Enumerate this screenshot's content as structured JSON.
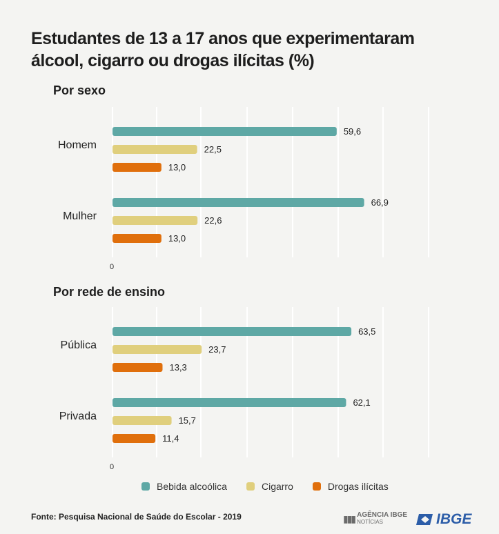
{
  "title": "Estudantes de 13 a 17 anos que experimentaram álcool, cigarro ou drogas ilícitas (%)",
  "colors": {
    "bebida": "#5ea8a5",
    "cigarro": "#e0cf7d",
    "drogas": "#e06f0c",
    "grid": "#ffffff",
    "text": "#222222"
  },
  "legend": [
    {
      "label": "Bebida alcoólica",
      "color": "#5ea8a5"
    },
    {
      "label": "Cigarro",
      "color": "#e0cf7d"
    },
    {
      "label": "Drogas ilícitas",
      "color": "#e06f0c"
    }
  ],
  "chart_data": [
    {
      "type": "bar",
      "orientation": "horizontal",
      "title": "Por sexo",
      "categories": [
        "Homem",
        "Mulher"
      ],
      "series": [
        {
          "name": "Bebida alcoólica",
          "values": [
            59.6,
            66.9
          ],
          "labels": [
            "59,6",
            "66,9"
          ]
        },
        {
          "name": "Cigarro",
          "values": [
            22.5,
            22.6
          ],
          "labels": [
            "22,5",
            "22,6"
          ]
        },
        {
          "name": "Drogas ilícitas",
          "values": [
            13.0,
            13.0
          ],
          "labels": [
            "13,0",
            "13,0"
          ]
        }
      ],
      "xlim": [
        0,
        80
      ],
      "x_tick_label": "0",
      "grid": true
    },
    {
      "type": "bar",
      "orientation": "horizontal",
      "title": "Por rede de ensino",
      "categories": [
        "Pública",
        "Privada"
      ],
      "series": [
        {
          "name": "Bebida alcoólica",
          "values": [
            63.5,
            62.1
          ],
          "labels": [
            "63,5",
            "62,1"
          ]
        },
        {
          "name": "Cigarro",
          "values": [
            23.7,
            15.7
          ],
          "labels": [
            "23,7",
            "15,7"
          ]
        },
        {
          "name": "Drogas ilícitas",
          "values": [
            13.3,
            11.4
          ],
          "labels": [
            "13,3",
            "11,4"
          ]
        }
      ],
      "xlim": [
        0,
        80
      ],
      "x_tick_label": "0",
      "grid": true
    }
  ],
  "source": "Fonte: Pesquisa Nacional de Saúde do Escolar - 2019",
  "logos": {
    "agencia": "AGÊNCIA IBGE",
    "agencia_sub": "NOTÍCIAS",
    "ibge": "IBGE"
  }
}
